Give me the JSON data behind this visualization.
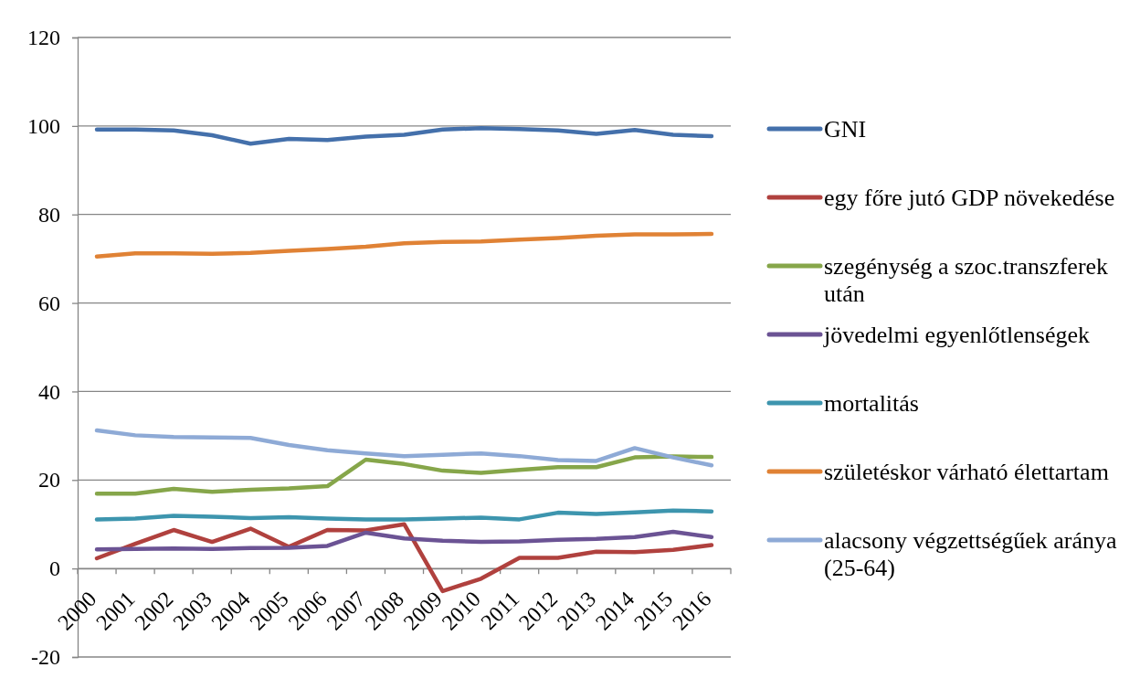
{
  "chart_data": {
    "type": "line",
    "categories": [
      "2000",
      "2001",
      "2002",
      "2003",
      "2004",
      "2005",
      "2006",
      "2007",
      "2008",
      "2009",
      "2010",
      "2011",
      "2012",
      "2013",
      "2014",
      "2015",
      "2016"
    ],
    "series": [
      {
        "name": "GNI",
        "color": "#4470ab",
        "values": [
          99.2,
          99.2,
          99.0,
          97.9,
          96.0,
          97.1,
          96.8,
          97.6,
          98.0,
          99.2,
          99.5,
          99.3,
          99.0,
          98.2,
          99.1,
          98.0,
          97.7
        ]
      },
      {
        "name": "egy főre jutó GDP növekedése",
        "color": "#b0413e",
        "values": [
          2.3,
          5.6,
          8.7,
          6.0,
          9.0,
          4.9,
          8.7,
          8.6,
          10.0,
          -5.1,
          -2.3,
          2.4,
          2.4,
          3.8,
          3.7,
          4.2,
          5.3
        ]
      },
      {
        "name": "szegénység a szoc.transzferek után",
        "color": "#86a64a",
        "values": [
          16.9,
          16.9,
          18.0,
          17.3,
          17.8,
          18.1,
          18.6,
          24.6,
          23.6,
          22.1,
          21.6,
          22.3,
          22.9,
          22.9,
          25.1,
          25.3,
          25.2
        ]
      },
      {
        "name": "jövedelmi egyenlőtlenségek",
        "color": "#6b5394",
        "values": [
          4.3,
          4.4,
          4.5,
          4.4,
          4.6,
          4.7,
          5.1,
          8.1,
          6.8,
          6.3,
          6.0,
          6.1,
          6.5,
          6.7,
          7.1,
          8.3,
          7.1
        ]
      },
      {
        "name": "mortalitás",
        "color": "#3d95ae",
        "values": [
          11.1,
          11.3,
          11.9,
          11.7,
          11.4,
          11.6,
          11.3,
          11.1,
          11.1,
          11.3,
          11.5,
          11.1,
          12.6,
          12.3,
          12.7,
          13.1,
          12.9
        ]
      },
      {
        "name": "születéskor várható élettartam",
        "color": "#e08235",
        "values": [
          70.5,
          71.2,
          71.2,
          71.1,
          71.3,
          71.8,
          72.2,
          72.7,
          73.5,
          73.8,
          73.9,
          74.3,
          74.7,
          75.2,
          75.5,
          75.5,
          75.6
        ]
      },
      {
        "name": "alacsony végzettségűek aránya (25-64)",
        "color": "#8eaad6",
        "values": [
          31.2,
          30.1,
          29.7,
          29.6,
          29.5,
          27.9,
          26.7,
          26.0,
          25.4,
          25.7,
          26.0,
          25.4,
          24.5,
          24.3,
          27.2,
          25.1,
          23.3
        ]
      }
    ],
    "ylim": [
      -20,
      120
    ],
    "yticks": [
      -20,
      0,
      20,
      40,
      60,
      80,
      100,
      120
    ],
    "grid": "y",
    "legend": "right",
    "line_style": "solid"
  }
}
